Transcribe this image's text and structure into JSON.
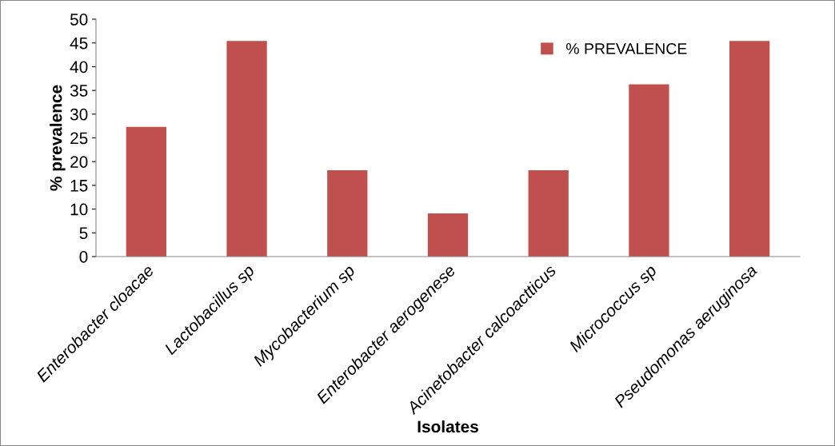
{
  "chart_data": {
    "type": "bar",
    "xlabel": "Isolates",
    "ylabel": "% prevalence",
    "categories": [
      "Enterobacter cloacae",
      "Lactobacillus sp",
      "Mycobacterium sp",
      "Enterobacter aerogenese",
      "Acinetobacter calcoactticus",
      "Micrococcus sp",
      "Pseudomonas aeruginosa"
    ],
    "series": [
      {
        "name": "% PREVALENCE",
        "color": "#c0504d",
        "values": [
          27.3,
          45.4,
          18.2,
          9.1,
          18.2,
          36.3,
          45.4
        ]
      }
    ],
    "ylim": [
      0,
      50
    ],
    "yticks": [
      0,
      5,
      10,
      15,
      20,
      25,
      30,
      35,
      40,
      45,
      50
    ],
    "grid": false,
    "legend": "top right"
  }
}
